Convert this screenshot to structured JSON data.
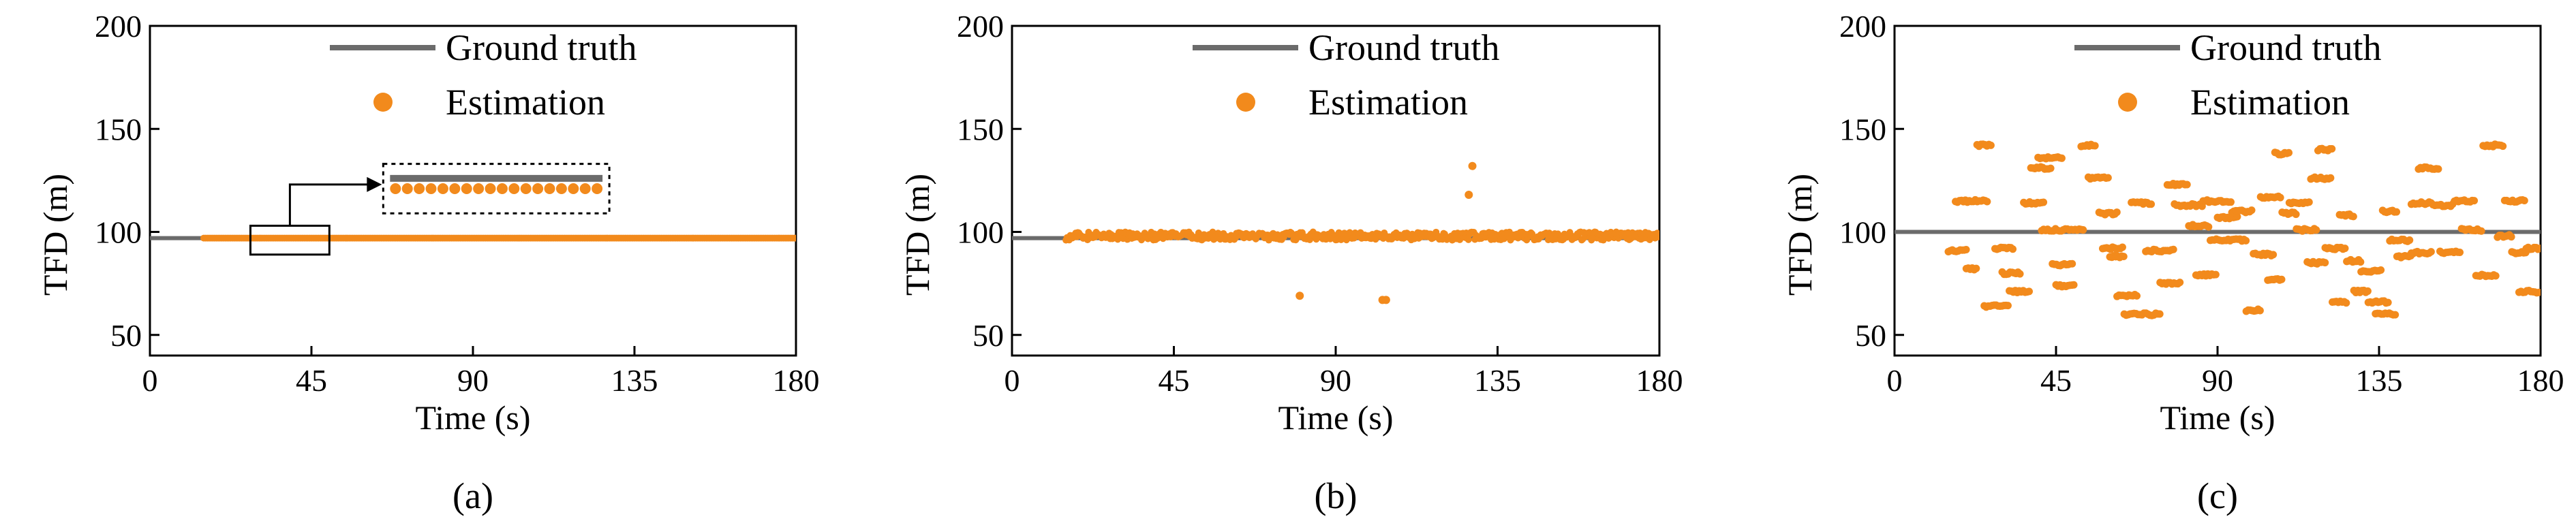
{
  "figure": {
    "colors": {
      "ground_truth": "#6b6b6b",
      "estimation": "#f28a1c",
      "axis": "#000000"
    }
  },
  "chart_data": [
    {
      "type": "line+scatter",
      "panel": "a",
      "caption": "(a)",
      "xlabel": "Time (s)",
      "ylabel": "TFD (m)",
      "xlim": [
        0,
        180
      ],
      "ylim": [
        40,
        200
      ],
      "x_ticks": [
        "0",
        "45",
        "90",
        "135",
        "180"
      ],
      "y_ticks": [
        "50",
        "100",
        "150",
        "200"
      ],
      "grid": false,
      "legend": {
        "placement": "top-center",
        "entries": [
          "Ground truth",
          "Estimation"
        ]
      },
      "series": [
        {
          "name": "Ground truth",
          "kind": "line",
          "x": [
            0,
            180
          ],
          "y": [
            97,
            97
          ]
        },
        {
          "name": "Estimation",
          "kind": "scatter",
          "x": [
            15,
            180
          ],
          "y": [
            97,
            97
          ],
          "dense_constant": true
        }
      ],
      "annotation": "zoom inset"
    },
    {
      "type": "line+scatter",
      "panel": "b",
      "caption": "(b)",
      "xlabel": "Time (s)",
      "ylabel": "TFD (m)",
      "xlim": [
        0,
        180
      ],
      "ylim": [
        40,
        200
      ],
      "x_ticks": [
        "0",
        "45",
        "90",
        "135",
        "180"
      ],
      "y_ticks": [
        "50",
        "100",
        "150",
        "200"
      ],
      "grid": false,
      "legend": {
        "placement": "top-center",
        "entries": [
          "Ground truth",
          "Estimation"
        ]
      },
      "series": [
        {
          "name": "Ground truth",
          "kind": "line",
          "x": [
            0,
            180
          ],
          "y": [
            97,
            97
          ]
        },
        {
          "name": "Estimation",
          "kind": "scatter",
          "band": {
            "x": [
              15,
              180
            ],
            "y_range": [
              96,
              100
            ]
          },
          "outliers": [
            [
              80,
              69
            ],
            [
              103,
              67
            ],
            [
              104,
              67
            ],
            [
              127,
              118
            ],
            [
              128,
              132
            ]
          ]
        }
      ]
    },
    {
      "type": "line+scatter",
      "panel": "c",
      "caption": "(c)",
      "xlabel": "Time (s)",
      "ylabel": "TFD (m)",
      "xlim": [
        0,
        180
      ],
      "ylim": [
        40,
        200
      ],
      "x_ticks": [
        "0",
        "45",
        "90",
        "135",
        "180"
      ],
      "y_ticks": [
        "50",
        "100",
        "150",
        "200"
      ],
      "grid": false,
      "legend": {
        "placement": "top-center",
        "entries": [
          "Ground truth",
          "Estimation"
        ]
      },
      "series": [
        {
          "name": "Ground truth",
          "kind": "line",
          "x": [
            0,
            180
          ],
          "y": [
            100,
            100
          ]
        },
        {
          "name": "Estimation",
          "kind": "scatter",
          "segments": [
            [
              15,
              20,
              91
            ],
            [
              17,
              26,
              115
            ],
            [
              20,
              23,
              82
            ],
            [
              23,
              27,
              142
            ],
            [
              25,
              32,
              64
            ],
            [
              28,
              33,
              92
            ],
            [
              30,
              35,
              80
            ],
            [
              32,
              38,
              71
            ],
            [
              36,
              42,
              114
            ],
            [
              38,
              44,
              131
            ],
            [
              40,
              47,
              136
            ],
            [
              41,
              53,
              101
            ],
            [
              44,
              50,
              84
            ],
            [
              45,
              50,
              74
            ],
            [
              52,
              56,
              142
            ],
            [
              54,
              60,
              126
            ],
            [
              57,
              62,
              109
            ],
            [
              58,
              64,
              92
            ],
            [
              60,
              64,
              88
            ],
            [
              62,
              68,
              69
            ],
            [
              64,
              74,
              60
            ],
            [
              66,
              72,
              114
            ],
            [
              70,
              78,
              91
            ],
            [
              74,
              80,
              75
            ],
            [
              76,
              82,
              123
            ],
            [
              78,
              86,
              113
            ],
            [
              82,
              88,
              103
            ],
            [
              84,
              90,
              79
            ],
            [
              86,
              94,
              115
            ],
            [
              88,
              98,
              96
            ],
            [
              90,
              96,
              107
            ],
            [
              94,
              100,
              110
            ],
            [
              98,
              102,
              62
            ],
            [
              100,
              106,
              89
            ],
            [
              102,
              108,
              117
            ],
            [
              104,
              108,
              77
            ],
            [
              106,
              110,
              138
            ],
            [
              108,
              112,
              109
            ],
            [
              110,
              116,
              114
            ],
            [
              112,
              118,
              101
            ],
            [
              115,
              120,
              85
            ],
            [
              116,
              122,
              126
            ],
            [
              118,
              122,
              140
            ],
            [
              120,
              126,
              92
            ],
            [
              122,
              126,
              66
            ],
            [
              124,
              128,
              108
            ],
            [
              126,
              130,
              86
            ],
            [
              128,
              132,
              71
            ],
            [
              130,
              136,
              81
            ],
            [
              132,
              138,
              66
            ],
            [
              134,
              140,
              60
            ],
            [
              136,
              140,
              110
            ],
            [
              138,
              144,
              96
            ],
            [
              140,
              144,
              88
            ],
            [
              144,
              150,
              114
            ],
            [
              144,
              150,
              90
            ],
            [
              146,
              152,
              131
            ],
            [
              150,
              156,
              113
            ],
            [
              152,
              158,
              90
            ],
            [
              156,
              162,
              115
            ],
            [
              158,
              164,
              101
            ],
            [
              162,
              168,
              79
            ],
            [
              164,
              170,
              142
            ],
            [
              168,
              172,
              98
            ],
            [
              170,
              176,
              115
            ],
            [
              172,
              176,
              90
            ],
            [
              174,
              180,
              71
            ],
            [
              176,
              180,
              92
            ]
          ]
        }
      ]
    }
  ]
}
